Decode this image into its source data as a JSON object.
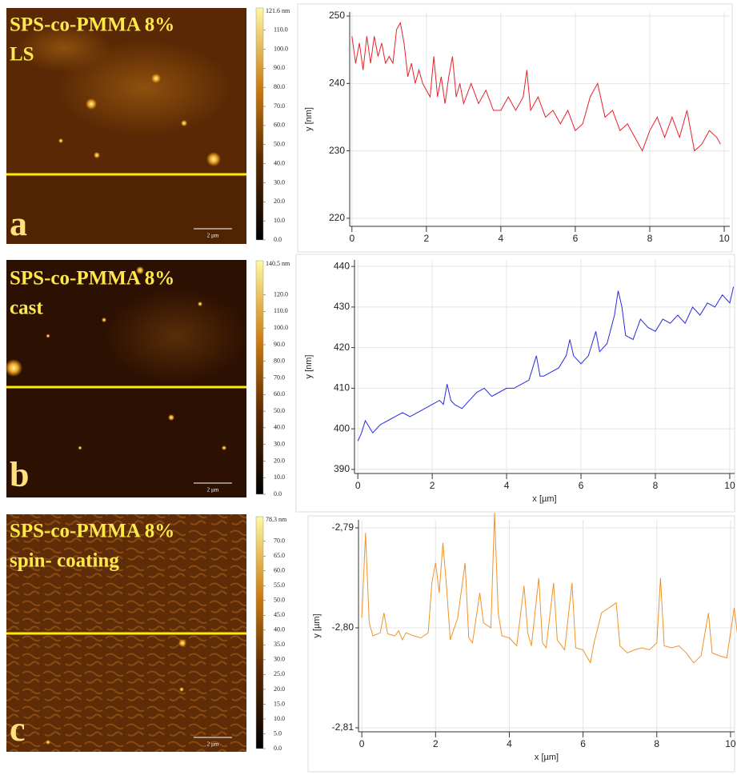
{
  "afm_images": [
    {
      "title": "SPS-co-PMMA 8%",
      "method": "LS",
      "letter": "a",
      "scale_bar": "2 µm",
      "colorbar": {
        "max": {
          "value": 121.6,
          "label": "121.6 nm"
        },
        "ticks": [
          {
            "value": 0,
            "label": "0.0"
          },
          {
            "value": 10,
            "label": "10.0"
          },
          {
            "value": 20,
            "label": "20.0"
          },
          {
            "value": 30,
            "label": "30.0"
          },
          {
            "value": 40,
            "label": "40.0"
          },
          {
            "value": 50,
            "label": "50.0"
          },
          {
            "value": 60,
            "label": "60.0"
          },
          {
            "value": 70,
            "label": "70.0"
          },
          {
            "value": 80,
            "label": "80.0"
          },
          {
            "value": 90,
            "label": "90.0"
          },
          {
            "value": 100,
            "label": "100.0"
          },
          {
            "value": 110,
            "label": "110.0"
          }
        ]
      }
    },
    {
      "title": "SPS-co-PMMA 8%",
      "method": "cast",
      "letter": "b",
      "scale_bar": "2 µm",
      "colorbar": {
        "max": {
          "value": 140.5,
          "label": "140.5 nm"
        },
        "ticks": [
          {
            "value": 0,
            "label": "0.0"
          },
          {
            "value": 10,
            "label": "10.0"
          },
          {
            "value": 20,
            "label": "20.0"
          },
          {
            "value": 30,
            "label": "30.0"
          },
          {
            "value": 40,
            "label": "40.0"
          },
          {
            "value": 50,
            "label": "50.0"
          },
          {
            "value": 60,
            "label": "60.0"
          },
          {
            "value": 70,
            "label": "70.0"
          },
          {
            "value": 80,
            "label": "80.0"
          },
          {
            "value": 90,
            "label": "90.0"
          },
          {
            "value": 100,
            "label": "100.0"
          },
          {
            "value": 110,
            "label": "110.0"
          },
          {
            "value": 120,
            "label": "120.0"
          }
        ]
      }
    },
    {
      "title": "SPS-co-PMMA 8%",
      "method": "spin- coating",
      "letter": "c",
      "scale_bar": "2 µm",
      "colorbar": {
        "max": {
          "value": 78.3,
          "label": "78.3 nm"
        },
        "ticks": [
          {
            "value": 0,
            "label": "0.0"
          },
          {
            "value": 5,
            "label": "5.0"
          },
          {
            "value": 10,
            "label": "10.0"
          },
          {
            "value": 15,
            "label": "15.0"
          },
          {
            "value": 20,
            "label": "20.0"
          },
          {
            "value": 25,
            "label": "25.0"
          },
          {
            "value": 30,
            "label": "30.0"
          },
          {
            "value": 35,
            "label": "35.0"
          },
          {
            "value": 40,
            "label": "40.0"
          },
          {
            "value": 45,
            "label": "45.0"
          },
          {
            "value": 50,
            "label": "50.0"
          },
          {
            "value": 55,
            "label": "55.0"
          },
          {
            "value": 60,
            "label": "60.0"
          },
          {
            "value": 65,
            "label": "65.0"
          },
          {
            "value": 70,
            "label": "70.0"
          }
        ]
      }
    }
  ],
  "chart_data": [
    {
      "type": "line",
      "ylabel": "y [nm]",
      "x": [
        0,
        0.1,
        0.2,
        0.3,
        0.4,
        0.5,
        0.6,
        0.7,
        0.8,
        0.9,
        1.0,
        1.1,
        1.2,
        1.3,
        1.4,
        1.5,
        1.6,
        1.7,
        1.8,
        1.9,
        2.0,
        2.1,
        2.2,
        2.3,
        2.4,
        2.5,
        2.6,
        2.7,
        2.8,
        2.9,
        3.0,
        3.2,
        3.4,
        3.6,
        3.8,
        4.0,
        4.2,
        4.4,
        4.6,
        4.7,
        4.8,
        5.0,
        5.2,
        5.4,
        5.6,
        5.8,
        6.0,
        6.2,
        6.4,
        6.6,
        6.8,
        7.0,
        7.2,
        7.4,
        7.6,
        7.8,
        8.0,
        8.2,
        8.4,
        8.6,
        8.8,
        9.0,
        9.2,
        9.4,
        9.6,
        9.8,
        9.9
      ],
      "series": [
        {
          "color": "#e8202a",
          "values": [
            247,
            243,
            246,
            242,
            247,
            243,
            247,
            244,
            246,
            243,
            244,
            243,
            248,
            249,
            246,
            241,
            243,
            240,
            242,
            240,
            239,
            238,
            244,
            238,
            241,
            237,
            241,
            244,
            238,
            240,
            237,
            240,
            237,
            239,
            236,
            236,
            238,
            236,
            238,
            242,
            236,
            238,
            235,
            236,
            234,
            236,
            233,
            234,
            238,
            240,
            235,
            236,
            233,
            234,
            232,
            230,
            233,
            235,
            232,
            235,
            232,
            236,
            230,
            231,
            233,
            232,
            231
          ]
        }
      ],
      "xlim": [
        -0.06,
        10.15
      ],
      "ylim": [
        218.8,
        250.6
      ],
      "xticks": [
        0,
        2,
        4,
        6,
        8,
        10
      ],
      "yticks": [
        220,
        230,
        240,
        250
      ],
      "grid": true
    },
    {
      "type": "line",
      "xlabel": "x [µm]",
      "ylabel": "y [nm]",
      "x": [
        0,
        0.1,
        0.2,
        0.4,
        0.6,
        0.8,
        1.0,
        1.2,
        1.4,
        1.6,
        1.8,
        2.0,
        2.2,
        2.3,
        2.4,
        2.5,
        2.6,
        2.8,
        3.0,
        3.2,
        3.4,
        3.6,
        3.8,
        4.0,
        4.2,
        4.4,
        4.6,
        4.8,
        4.9,
        5.0,
        5.2,
        5.4,
        5.6,
        5.7,
        5.8,
        6.0,
        6.2,
        6.4,
        6.5,
        6.7,
        6.9,
        7.0,
        7.1,
        7.2,
        7.4,
        7.6,
        7.8,
        8.0,
        8.2,
        8.4,
        8.6,
        8.8,
        9.0,
        9.2,
        9.4,
        9.6,
        9.8,
        10.0,
        10.1
      ],
      "series": [
        {
          "color": "#2a2ae0",
          "values": [
            397,
            399,
            402,
            399,
            401,
            402,
            403,
            404,
            403,
            404,
            405,
            406,
            407,
            406,
            411,
            407,
            406,
            405,
            407,
            409,
            410,
            408,
            409,
            410,
            410,
            411,
            412,
            418,
            413,
            413,
            414,
            415,
            418,
            422,
            418,
            416,
            418,
            424,
            419,
            421,
            428,
            434,
            430,
            423,
            422,
            427,
            425,
            424,
            427,
            426,
            428,
            426,
            430,
            428,
            431,
            430,
            433,
            431,
            435
          ]
        }
      ],
      "xlim": [
        -0.09,
        10.13
      ],
      "ylim": [
        389,
        441.6
      ],
      "xticks": [
        0,
        2,
        4,
        6,
        8,
        10
      ],
      "yticks": [
        390,
        400,
        410,
        420,
        430,
        440
      ],
      "grid": true
    },
    {
      "type": "line",
      "xlabel": "x [µm]",
      "ylabel": "y [µm]",
      "x": [
        0,
        0.1,
        0.2,
        0.3,
        0.5,
        0.6,
        0.7,
        0.9,
        1.0,
        1.1,
        1.2,
        1.4,
        1.6,
        1.8,
        1.9,
        2.0,
        2.1,
        2.2,
        2.3,
        2.4,
        2.6,
        2.8,
        2.9,
        3.0,
        3.2,
        3.3,
        3.5,
        3.6,
        3.7,
        3.8,
        4.0,
        4.2,
        4.4,
        4.5,
        4.6,
        4.8,
        4.9,
        5.0,
        5.2,
        5.3,
        5.5,
        5.7,
        5.8,
        6.0,
        6.2,
        6.3,
        6.5,
        6.7,
        6.9,
        7.0,
        7.2,
        7.4,
        7.6,
        7.8,
        8.0,
        8.1,
        8.2,
        8.4,
        8.6,
        8.8,
        9.0,
        9.2,
        9.4,
        9.5,
        9.7,
        9.9,
        10.1,
        10.2
      ],
      "series": [
        {
          "color": "#f0922a",
          "values": [
            -2.799,
            -2.7905,
            -2.7995,
            -2.8008,
            -2.8005,
            -2.7985,
            -2.8006,
            -2.8008,
            -2.8003,
            -2.8012,
            -2.8005,
            -2.8008,
            -2.801,
            -2.8005,
            -2.7955,
            -2.7935,
            -2.7965,
            -2.7915,
            -2.796,
            -2.8012,
            -2.799,
            -2.7935,
            -2.801,
            -2.8015,
            -2.7965,
            -2.7995,
            -2.8,
            -2.7885,
            -2.7985,
            -2.8008,
            -2.801,
            -2.8018,
            -2.7958,
            -2.8005,
            -2.8018,
            -2.795,
            -2.8015,
            -2.802,
            -2.7955,
            -2.8012,
            -2.8022,
            -2.7955,
            -2.802,
            -2.8022,
            -2.8035,
            -2.8015,
            -2.7985,
            -2.798,
            -2.7975,
            -2.8018,
            -2.8025,
            -2.8022,
            -2.802,
            -2.8022,
            -2.8015,
            -2.795,
            -2.8018,
            -2.802,
            -2.8018,
            -2.8025,
            -2.8035,
            -2.8028,
            -2.7985,
            -2.8025,
            -2.8028,
            -2.803,
            -2.798,
            -2.801
          ]
        }
      ],
      "xlim": [
        -0.09,
        10.11
      ],
      "ylim": [
        -2.8104,
        -2.7892
      ],
      "xticks": [
        0,
        2,
        4,
        6,
        8,
        10
      ],
      "yticks": [
        {
          "value": -2.79,
          "label": "-2,79"
        },
        {
          "value": -2.8,
          "label": "-2,80"
        },
        {
          "value": -2.81,
          "label": "-2,81"
        }
      ],
      "grid": true
    }
  ]
}
